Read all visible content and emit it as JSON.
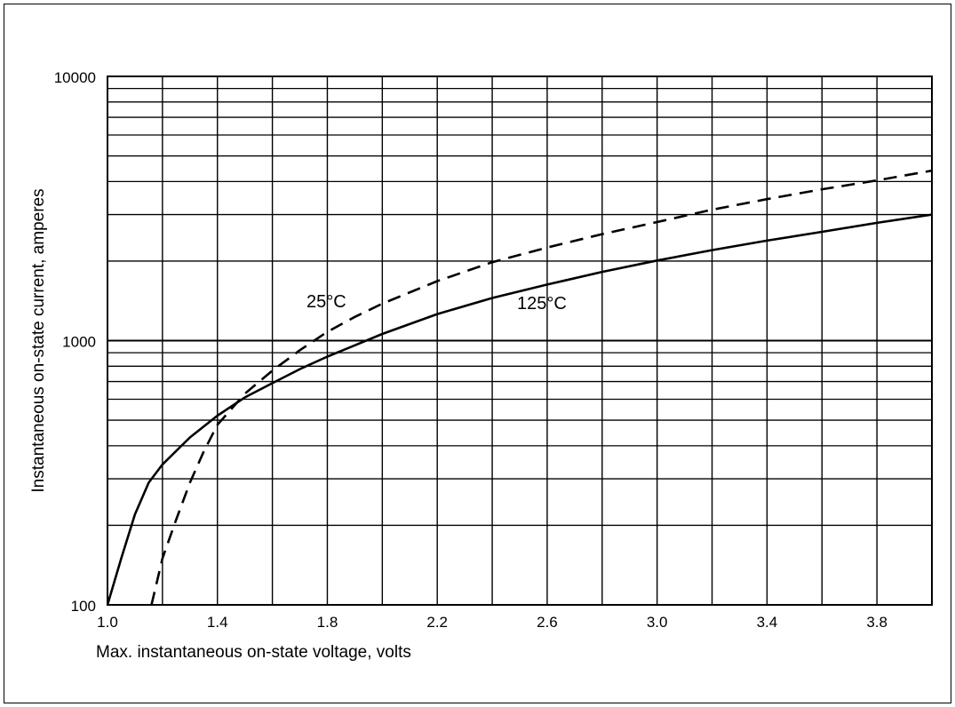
{
  "chart_data": {
    "type": "line",
    "title": "",
    "xlabel": "Max. instantaneous on-state voltage, volts",
    "ylabel": "Instantaneous on-state current, amperes",
    "xlim": [
      1.0,
      4.0
    ],
    "ylim": [
      100,
      10000
    ],
    "yscale": "log",
    "grid": true,
    "legend": "none",
    "x_ticks": [
      {
        "value": 1.0,
        "label": "1.0"
      },
      {
        "value": 1.4,
        "label": "1.4"
      },
      {
        "value": 1.8,
        "label": "1.8"
      },
      {
        "value": 2.2,
        "label": "2.2"
      },
      {
        "value": 2.6,
        "label": "2.6"
      },
      {
        "value": 3.0,
        "label": "3.0"
      },
      {
        "value": 3.4,
        "label": "3.4"
      },
      {
        "value": 3.8,
        "label": "3.8"
      }
    ],
    "y_ticks": [
      {
        "value": 100,
        "label": "100"
      },
      {
        "value": 1000,
        "label": "1000"
      },
      {
        "value": 10000,
        "label": "10000"
      }
    ],
    "series": [
      {
        "name": "125°C",
        "style": "solid",
        "points": [
          [
            1.0,
            100
          ],
          [
            1.05,
            150
          ],
          [
            1.1,
            220
          ],
          [
            1.15,
            290
          ],
          [
            1.2,
            340
          ],
          [
            1.3,
            430
          ],
          [
            1.4,
            520
          ],
          [
            1.5,
            610
          ],
          [
            1.6,
            690
          ],
          [
            1.7,
            780
          ],
          [
            1.8,
            870
          ],
          [
            1.9,
            960
          ],
          [
            2.0,
            1060
          ],
          [
            2.2,
            1260
          ],
          [
            2.4,
            1450
          ],
          [
            2.6,
            1630
          ],
          [
            2.8,
            1820
          ],
          [
            3.0,
            2010
          ],
          [
            3.2,
            2200
          ],
          [
            3.4,
            2390
          ],
          [
            3.6,
            2580
          ],
          [
            3.8,
            2790
          ],
          [
            4.0,
            3000
          ]
        ]
      },
      {
        "name": "25°C",
        "style": "dashed",
        "points": [
          [
            1.16,
            100
          ],
          [
            1.2,
            150
          ],
          [
            1.25,
            210
          ],
          [
            1.3,
            290
          ],
          [
            1.35,
            380
          ],
          [
            1.4,
            480
          ],
          [
            1.5,
            630
          ],
          [
            1.6,
            770
          ],
          [
            1.7,
            920
          ],
          [
            1.8,
            1080
          ],
          [
            1.9,
            1230
          ],
          [
            2.0,
            1380
          ],
          [
            2.2,
            1680
          ],
          [
            2.4,
            1980
          ],
          [
            2.6,
            2250
          ],
          [
            2.8,
            2530
          ],
          [
            3.0,
            2810
          ],
          [
            3.2,
            3130
          ],
          [
            3.4,
            3430
          ],
          [
            3.6,
            3740
          ],
          [
            3.8,
            4040
          ],
          [
            4.0,
            4400
          ]
        ]
      }
    ]
  }
}
